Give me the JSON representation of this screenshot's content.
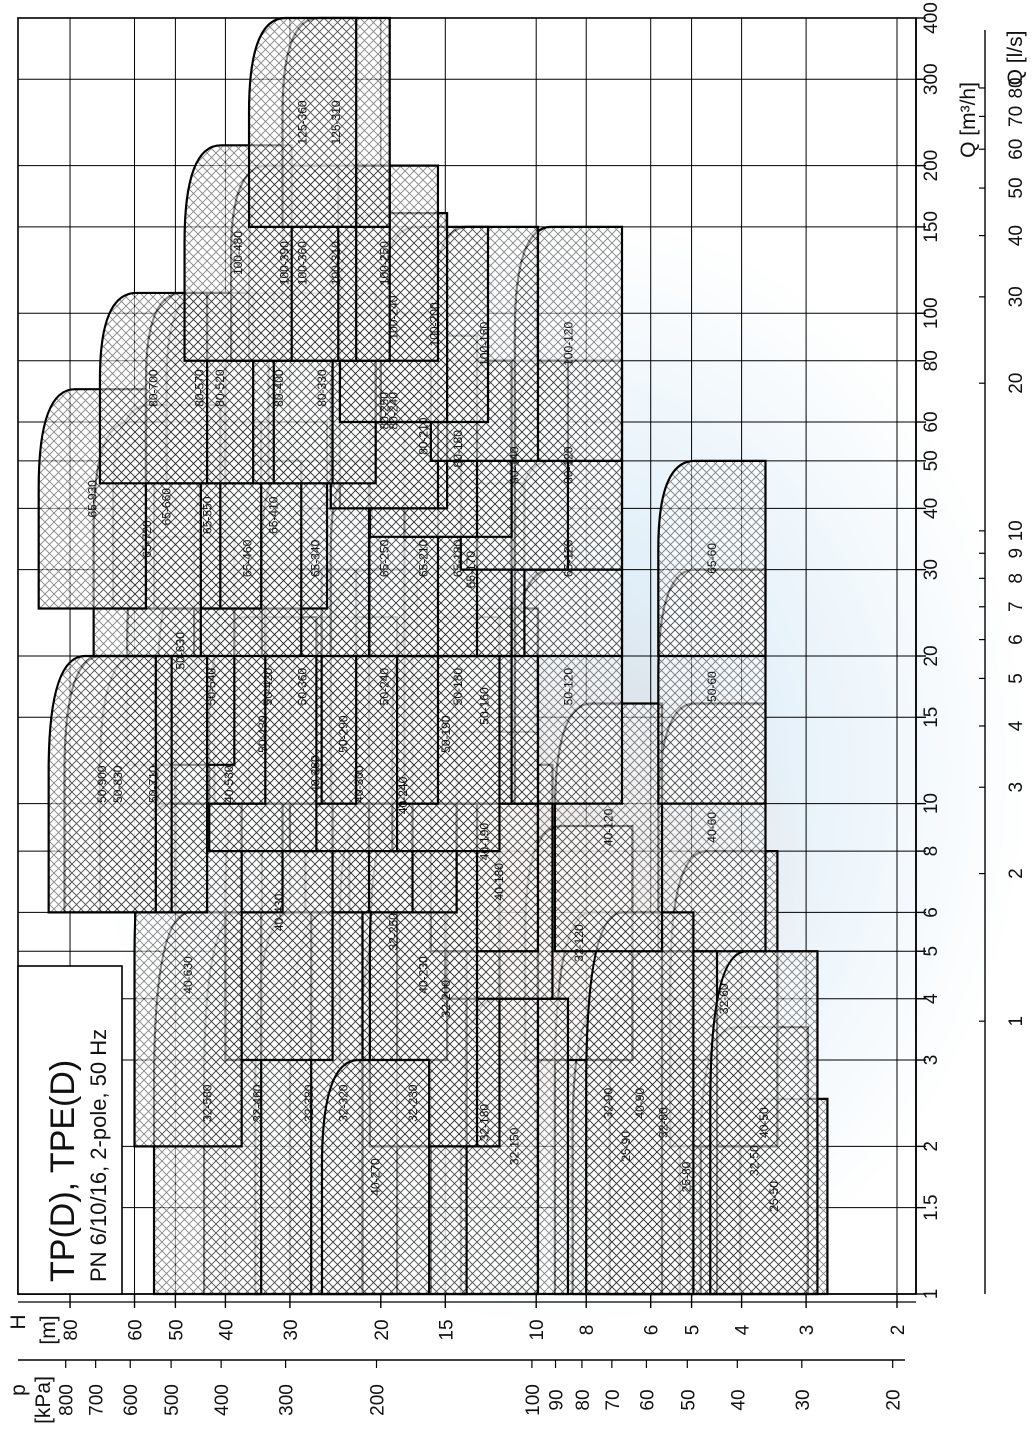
{
  "title": "TP(D), TPE(D)",
  "subtitle": "PN 6/10/16, 2-pole, 50 Hz",
  "chart_data": {
    "type": "area",
    "orientation": "rotated 90 degrees counter-clockwise",
    "x_scale": "log",
    "y_scale": "log",
    "grid": true,
    "axes": {
      "q_m3h": {
        "label": "Q [m³/h]",
        "range": [
          1,
          400
        ],
        "ticks": [
          "1",
          "1.5",
          "2",
          "3",
          "4",
          "5",
          "6",
          "8",
          "10",
          "15",
          "20",
          "30",
          "40",
          "50",
          "60",
          "80",
          "100",
          "150",
          "200",
          "300",
          "400"
        ]
      },
      "q_ls": {
        "label": "Q [l/s]",
        "ticks": [
          "1",
          "2",
          "3",
          "4",
          "5",
          "6",
          "7",
          "8",
          "9",
          "10",
          "20",
          "30",
          "40",
          "50",
          "60",
          "70",
          "80"
        ]
      },
      "h_m": {
        "label_symbol": "H",
        "label_unit": "[m]",
        "range": [
          2,
          100
        ],
        "ticks": [
          "2",
          "3",
          "4",
          "5",
          "6",
          "8",
          "10",
          "15",
          "20",
          "30",
          "40",
          "50",
          "60",
          "80"
        ]
      },
      "p_kpa": {
        "label_symbol": "p",
        "label_unit": "[kPa]",
        "ticks": [
          "20",
          "30",
          "40",
          "50",
          "60",
          "70",
          "80",
          "90",
          "100",
          "200",
          "300",
          "400",
          "500",
          "600",
          "700",
          "800"
        ]
      }
    },
    "series": [
      {
        "name": "25-50",
        "q": [
          1,
          2.5
        ],
        "h_max": 4.4
      },
      {
        "name": "25-80",
        "q": [
          1,
          3
        ],
        "h_max": 6.5
      },
      {
        "name": "25-90",
        "q": [
          1,
          4
        ],
        "h_max": 8.5
      },
      {
        "name": "32-50",
        "q": [
          1,
          3.5
        ],
        "h_max": 4.8
      },
      {
        "name": "32-60",
        "q": [
          2,
          8
        ],
        "h_max": 5.5
      },
      {
        "name": "32-80",
        "q": [
          1,
          5
        ],
        "h_max": 7.2
      },
      {
        "name": "32-90",
        "q": [
          1,
          6
        ],
        "h_max": 9.2
      },
      {
        "name": "32-120",
        "q": [
          3,
          9
        ],
        "h_max": 10.5
      },
      {
        "name": "32-150",
        "q": [
          1,
          4
        ],
        "h_max": 14
      },
      {
        "name": "32-180",
        "q": [
          1,
          5
        ],
        "h_max": 16
      },
      {
        "name": "32-200",
        "q": [
          2,
          8
        ],
        "h_max": 19
      },
      {
        "name": "32-230",
        "q": [
          1,
          6
        ],
        "h_max": 22
      },
      {
        "name": "32-250",
        "q": [
          3,
          10
        ],
        "h_max": 24
      },
      {
        "name": "32-320",
        "q": [
          1,
          6
        ],
        "h_max": 30
      },
      {
        "name": "32-380",
        "q": [
          1,
          6
        ],
        "h_max": 35
      },
      {
        "name": "32-460",
        "q": [
          1,
          6
        ],
        "h_max": 44
      },
      {
        "name": "32-580",
        "q": [
          1,
          6
        ],
        "h_max": 55
      },
      {
        "name": "40-50",
        "q": [
          1,
          5
        ],
        "h_max": 4.6
      },
      {
        "name": "40-60",
        "q": [
          5,
          16
        ],
        "h_max": 5.8
      },
      {
        "name": "40-90",
        "q": [
          1,
          6
        ],
        "h_max": 8
      },
      {
        "name": "40-120",
        "q": [
          5,
          16
        ],
        "h_max": 9.2
      },
      {
        "name": "40-180",
        "q": [
          4,
          12
        ],
        "h_max": 15
      },
      {
        "name": "40-190",
        "q": [
          5,
          14
        ],
        "h_max": 16
      },
      {
        "name": "40-230",
        "q": [
          2,
          10
        ],
        "h_max": 21
      },
      {
        "name": "40-240",
        "q": [
          6,
          18
        ],
        "h_max": 23
      },
      {
        "name": "40-270",
        "q": [
          1,
          3
        ],
        "h_max": 26
      },
      {
        "name": "40-300",
        "q": [
          6,
          20
        ],
        "h_max": 28
      },
      {
        "name": "40-360",
        "q": [
          6,
          22
        ],
        "h_max": 34
      },
      {
        "name": "40-430",
        "q": [
          3,
          12
        ],
        "h_max": 40
      },
      {
        "name": "40-530",
        "q": [
          6,
          20
        ],
        "h_max": 50
      },
      {
        "name": "40-630",
        "q": [
          2,
          10
        ],
        "h_max": 60
      },
      {
        "name": "50-60",
        "q": [
          10,
          30
        ],
        "h_max": 5.8
      },
      {
        "name": "50-120",
        "q": [
          10,
          30
        ],
        "h_max": 11
      },
      {
        "name": "50-160",
        "q": [
          10,
          25
        ],
        "h_max": 16
      },
      {
        "name": "50-180",
        "q": [
          10,
          30
        ],
        "h_max": 18
      },
      {
        "name": "50-190",
        "q": [
          8,
          24
        ],
        "h_max": 19
      },
      {
        "name": "50-240",
        "q": [
          10,
          30
        ],
        "h_max": 25
      },
      {
        "name": "50-290",
        "q": [
          8,
          24
        ],
        "h_max": 30
      },
      {
        "name": "50-360",
        "q": [
          10,
          30
        ],
        "h_max": 36
      },
      {
        "name": "50-420",
        "q": [
          10,
          30
        ],
        "h_max": 42
      },
      {
        "name": "50-430",
        "q": [
          8,
          24
        ],
        "h_max": 43
      },
      {
        "name": "50-540",
        "q": [
          10,
          30
        ],
        "h_max": 54
      },
      {
        "name": "50-630",
        "q": [
          12,
          35
        ],
        "h_max": 62
      },
      {
        "name": "50-710",
        "q": [
          6,
          20
        ],
        "h_max": 70
      },
      {
        "name": "50-830",
        "q": [
          6,
          20
        ],
        "h_max": 82
      },
      {
        "name": "50-900",
        "q": [
          6,
          20
        ],
        "h_max": 88
      },
      {
        "name": "65-60",
        "q": [
          20,
          50
        ],
        "h_max": 5.8
      },
      {
        "name": "65-120",
        "q": [
          20,
          50
        ],
        "h_max": 11
      },
      {
        "name": "65-170",
        "q": [
          20,
          45
        ],
        "h_max": 17
      },
      {
        "name": "65-180",
        "q": [
          20,
          50
        ],
        "h_max": 18
      },
      {
        "name": "65-210",
        "q": [
          20,
          50
        ],
        "h_max": 21
      },
      {
        "name": "65-250",
        "q": [
          20,
          50
        ],
        "h_max": 25
      },
      {
        "name": "65-340",
        "q": [
          20,
          50
        ],
        "h_max": 34
      },
      {
        "name": "65-410",
        "q": [
          25,
          60
        ],
        "h_max": 41
      },
      {
        "name": "65-460",
        "q": [
          20,
          50
        ],
        "h_max": 46
      },
      {
        "name": "65-550",
        "q": [
          25,
          60
        ],
        "h_max": 55
      },
      {
        "name": "65-660",
        "q": [
          25,
          65
        ],
        "h_max": 66
      },
      {
        "name": "65-720",
        "q": [
          20,
          60
        ],
        "h_max": 72
      },
      {
        "name": "65-930",
        "q": [
          25,
          70
        ],
        "h_max": 92
      },
      {
        "name": "80-120",
        "q": [
          30,
          80
        ],
        "h_max": 11
      },
      {
        "name": "80-140",
        "q": [
          30,
          80
        ],
        "h_max": 14
      },
      {
        "name": "80-180",
        "q": [
          35,
          80
        ],
        "h_max": 18
      },
      {
        "name": "80-210",
        "q": [
          35,
          90
        ],
        "h_max": 21
      },
      {
        "name": "80-240",
        "q": [
          40,
          100
        ],
        "h_max": 24
      },
      {
        "name": "80-250",
        "q": [
          40,
          100
        ],
        "h_max": 25
      },
      {
        "name": "80-330",
        "q": [
          45,
          110
        ],
        "h_max": 33
      },
      {
        "name": "80-400",
        "q": [
          45,
          110
        ],
        "h_max": 40
      },
      {
        "name": "80-520",
        "q": [
          45,
          110
        ],
        "h_max": 52
      },
      {
        "name": "80-570",
        "q": [
          45,
          110
        ],
        "h_max": 57
      },
      {
        "name": "80-700",
        "q": [
          45,
          110
        ],
        "h_max": 70
      },
      {
        "name": "100-120",
        "q": [
          50,
          150
        ],
        "h_max": 11
      },
      {
        "name": "100-160",
        "q": [
          50,
          150
        ],
        "h_max": 16
      },
      {
        "name": "100-200",
        "q": [
          60,
          150
        ],
        "h_max": 20
      },
      {
        "name": "100-240",
        "q": [
          60,
          160
        ],
        "h_max": 24
      },
      {
        "name": "100-250",
        "q": [
          80,
          200
        ],
        "h_max": 25
      },
      {
        "name": "100-310",
        "q": [
          80,
          200
        ],
        "h_max": 31
      },
      {
        "name": "100-360",
        "q": [
          80,
          200
        ],
        "h_max": 36
      },
      {
        "name": "100-390",
        "q": [
          80,
          200
        ],
        "h_max": 39
      },
      {
        "name": "100-480",
        "q": [
          80,
          220
        ],
        "h_max": 48
      },
      {
        "name": "125-310",
        "q": [
          150,
          400
        ],
        "h_max": 31
      },
      {
        "name": "125-360",
        "q": [
          150,
          400
        ],
        "h_max": 36
      }
    ]
  }
}
